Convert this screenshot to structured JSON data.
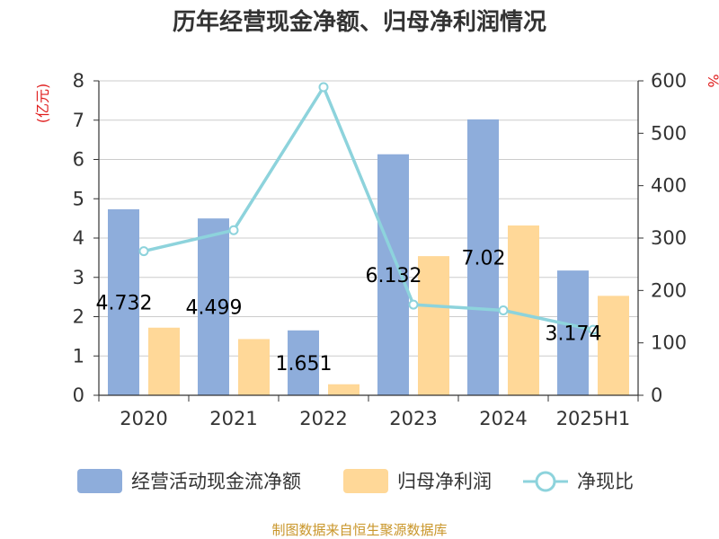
{
  "title": "历年经营现金净额、归母净利润情况",
  "source": "制图数据来自恒生聚源数据库",
  "colors": {
    "bar1": "#8eaddb",
    "bar2": "#ffd898",
    "line": "#8dd3dc",
    "axis": "#333333",
    "grid": "#cccccc",
    "unit": "#e02020",
    "source": "#c9962a"
  },
  "legend": {
    "series1": "经营活动现金流净额",
    "series2": "归母净利润",
    "series3": "净现比"
  },
  "chart_data": {
    "type": "bar",
    "title": "历年经营现金净额、归母净利润情况",
    "categories": [
      "2020",
      "2021",
      "2022",
      "2023",
      "2024",
      "2025H1"
    ],
    "ylabel_left": "(亿元)",
    "ylabel_right": "%",
    "ylim_left": [
      0,
      8
    ],
    "ylim_right": [
      0,
      600
    ],
    "yticks_left": [
      "0",
      "1",
      "2",
      "3",
      "4",
      "5",
      "6",
      "7",
      "8"
    ],
    "yticks_right": [
      "0",
      "100",
      "200",
      "300",
      "400",
      "500",
      "600"
    ],
    "grid": true,
    "legend_position": "bottom",
    "series": [
      {
        "name": "经营活动现金流净额",
        "type": "bar",
        "axis": "left",
        "values": [
          4.732,
          4.499,
          1.651,
          6.132,
          7.02,
          3.174
        ],
        "labels": [
          "4.732",
          "4.499",
          "1.651",
          "6.132",
          "7.02",
          "3.174"
        ]
      },
      {
        "name": "归母净利润",
        "type": "bar",
        "axis": "left",
        "values": [
          1.72,
          1.43,
          0.28,
          3.54,
          4.32,
          2.53
        ]
      },
      {
        "name": "净现比",
        "type": "line",
        "axis": "right",
        "values": [
          275,
          315,
          588,
          173,
          162,
          125
        ]
      }
    ]
  }
}
